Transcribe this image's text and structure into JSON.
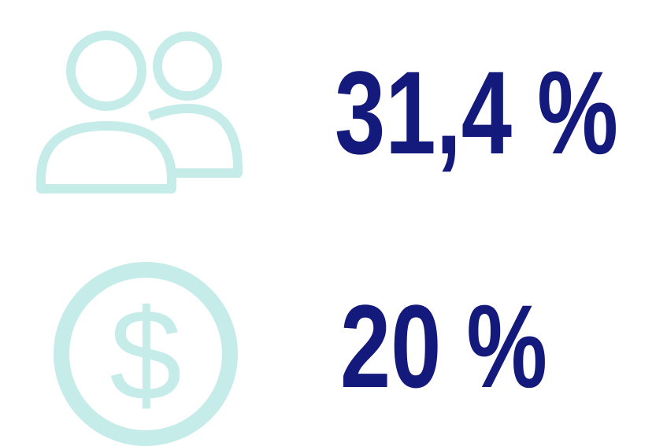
{
  "items": [
    {
      "value": "31,4 %"
    },
    {
      "value": "20 %"
    }
  ]
}
